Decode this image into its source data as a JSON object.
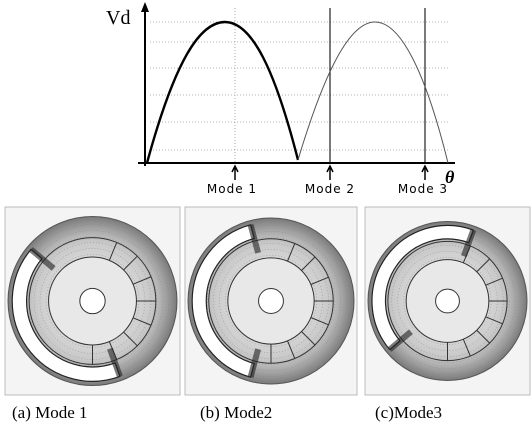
{
  "plot": {
    "y_label": "Vd",
    "x_label": "θ",
    "markers": [
      "Mode 1",
      "Mode 2",
      "Mode 3"
    ]
  },
  "panels": [
    {
      "caption": "(a) Mode 1"
    },
    {
      "caption": "(b) Mode2"
    },
    {
      "caption": "(c)Mode3"
    }
  ]
}
